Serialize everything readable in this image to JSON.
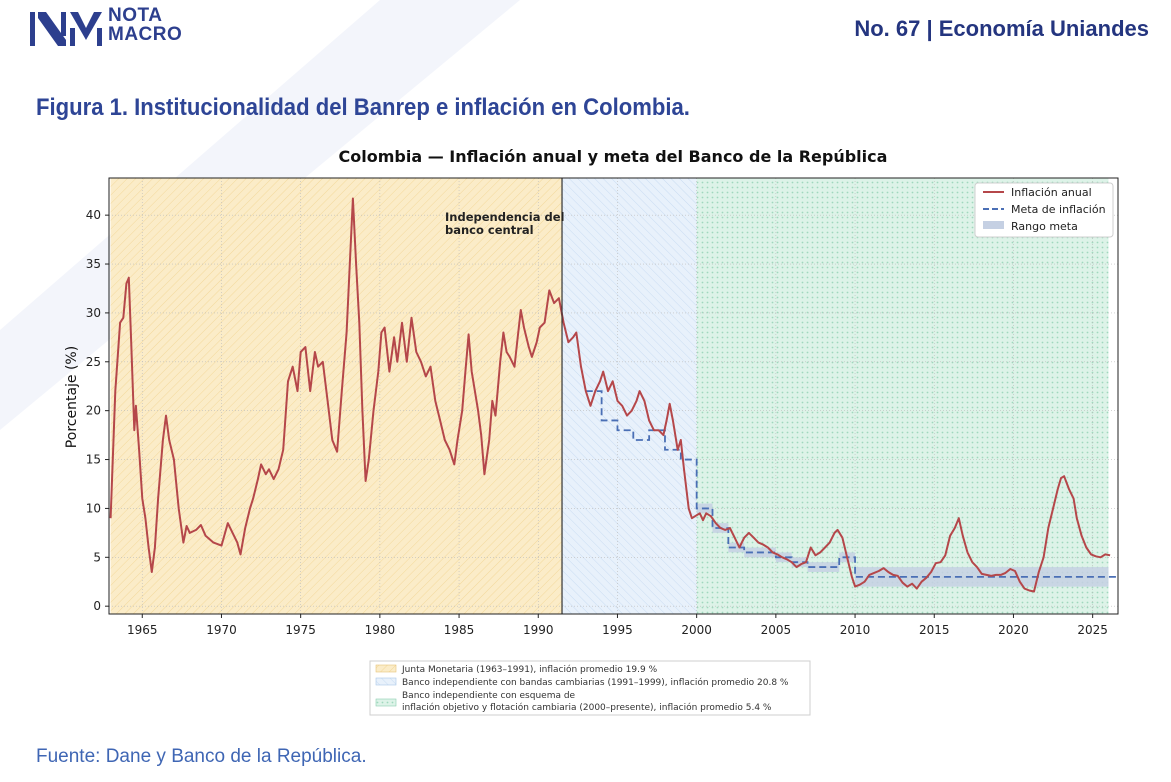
{
  "header": {
    "logo_line1": "NOTA",
    "logo_line2": "MACRO",
    "issue": "No. 67 | Economía Uniandes"
  },
  "figure_title": "Figura 1. Institucionalidad del Banrep e inflación en Colombia.",
  "source": "Fuente: Dane y Banco de la República.",
  "colors": {
    "brand": "#2d3f8e",
    "inflation_line": "#b5474a",
    "target_line": "#4a6fb5",
    "target_band": "#c5d0e3",
    "period1": "#fbecc8",
    "period2": "#e3eefa",
    "period3": "#d9f1e6"
  },
  "chart_data": {
    "type": "line",
    "title": "Colombia — Inflación anual y meta del Banco de la República",
    "xlabel": "",
    "ylabel": "Porcentaje (%)",
    "xlim": [
      1962.9,
      2026.6
    ],
    "ylim": [
      -0.8,
      43.8
    ],
    "x_ticks": [
      1965,
      1970,
      1975,
      1980,
      1985,
      1990,
      1995,
      2000,
      2005,
      2010,
      2015,
      2020,
      2025
    ],
    "y_ticks": [
      0,
      5,
      10,
      15,
      20,
      25,
      30,
      35,
      40
    ],
    "grid": true,
    "legend_position": "top-right",
    "legend": [
      "Inflación anual",
      "Meta de inflación",
      "Rango meta"
    ],
    "annotation": {
      "text_line1": "Independencia del",
      "text_line2": "banco central",
      "x": 1991.5
    },
    "periods": [
      {
        "label": "Junta Monetaria (1963–1991), inflación promedio 19.9 %",
        "start": 1963,
        "end": 1991.5
      },
      {
        "label": "Banco independiente con bandas cambiarias (1991–1999), inflación promedio 20.8 %",
        "start": 1991.5,
        "end": 2000
      },
      {
        "label_line1": "Banco independiente con esquema de",
        "label_line2": "inflación objetivo y flotación cambiaria (2000–presente), inflación promedio 5.4 %",
        "start": 2000,
        "end": 2026
      }
    ],
    "series": [
      {
        "name": "Inflación anual",
        "points": [
          [
            1963.0,
            9
          ],
          [
            1963.3,
            22
          ],
          [
            1963.6,
            29
          ],
          [
            1963.8,
            29.5
          ],
          [
            1964.0,
            33
          ],
          [
            1964.15,
            33.6
          ],
          [
            1964.3,
            27
          ],
          [
            1964.5,
            18
          ],
          [
            1964.6,
            20.5
          ],
          [
            1964.8,
            16
          ],
          [
            1965.0,
            11
          ],
          [
            1965.2,
            9
          ],
          [
            1965.4,
            6
          ],
          [
            1965.6,
            3.5
          ],
          [
            1965.8,
            6
          ],
          [
            1966.0,
            11
          ],
          [
            1966.3,
            17
          ],
          [
            1966.5,
            19.5
          ],
          [
            1966.7,
            17
          ],
          [
            1967.0,
            15
          ],
          [
            1967.3,
            10
          ],
          [
            1967.6,
            6.5
          ],
          [
            1967.8,
            8.2
          ],
          [
            1968.0,
            7.5
          ],
          [
            1968.4,
            7.8
          ],
          [
            1968.7,
            8.3
          ],
          [
            1969.0,
            7.2
          ],
          [
            1969.5,
            6.5
          ],
          [
            1970.0,
            6.2
          ],
          [
            1970.4,
            8.5
          ],
          [
            1970.7,
            7.5
          ],
          [
            1971.0,
            6.5
          ],
          [
            1971.2,
            5.3
          ],
          [
            1971.5,
            8
          ],
          [
            1971.8,
            10
          ],
          [
            1972.0,
            11
          ],
          [
            1972.3,
            13
          ],
          [
            1972.5,
            14.5
          ],
          [
            1972.8,
            13.5
          ],
          [
            1973.0,
            14
          ],
          [
            1973.3,
            13
          ],
          [
            1973.6,
            14
          ],
          [
            1973.9,
            16
          ],
          [
            1974.2,
            23
          ],
          [
            1974.5,
            24.5
          ],
          [
            1974.8,
            22
          ],
          [
            1975.0,
            26
          ],
          [
            1975.3,
            26.5
          ],
          [
            1975.6,
            22
          ],
          [
            1975.9,
            26
          ],
          [
            1976.1,
            24.5
          ],
          [
            1976.4,
            25
          ],
          [
            1976.7,
            21
          ],
          [
            1977.0,
            17
          ],
          [
            1977.3,
            15.8
          ],
          [
            1977.6,
            22
          ],
          [
            1977.9,
            28
          ],
          [
            1978.1,
            35
          ],
          [
            1978.3,
            41.7
          ],
          [
            1978.5,
            35
          ],
          [
            1978.7,
            29
          ],
          [
            1978.9,
            20
          ],
          [
            1979.1,
            12.8
          ],
          [
            1979.3,
            15
          ],
          [
            1979.6,
            20
          ],
          [
            1979.9,
            24
          ],
          [
            1980.1,
            28
          ],
          [
            1980.3,
            28.5
          ],
          [
            1980.6,
            24
          ],
          [
            1980.9,
            27.5
          ],
          [
            1981.1,
            25
          ],
          [
            1981.4,
            29
          ],
          [
            1981.7,
            25
          ],
          [
            1982.0,
            29.5
          ],
          [
            1982.3,
            26
          ],
          [
            1982.6,
            25
          ],
          [
            1982.9,
            23.5
          ],
          [
            1983.2,
            24.5
          ],
          [
            1983.5,
            21
          ],
          [
            1983.8,
            19
          ],
          [
            1984.1,
            17
          ],
          [
            1984.4,
            16
          ],
          [
            1984.7,
            14.5
          ],
          [
            1984.9,
            17
          ],
          [
            1985.2,
            20
          ],
          [
            1985.4,
            24
          ],
          [
            1985.6,
            27.8
          ],
          [
            1985.8,
            24
          ],
          [
            1986.0,
            22
          ],
          [
            1986.2,
            20
          ],
          [
            1986.4,
            17.5
          ],
          [
            1986.6,
            13.5
          ],
          [
            1986.9,
            17
          ],
          [
            1987.1,
            21
          ],
          [
            1987.3,
            19.5
          ],
          [
            1987.6,
            25
          ],
          [
            1987.8,
            28
          ],
          [
            1988.0,
            26
          ],
          [
            1988.2,
            25.5
          ],
          [
            1988.5,
            24.5
          ],
          [
            1988.7,
            27.5
          ],
          [
            1988.9,
            30.3
          ],
          [
            1989.1,
            28.5
          ],
          [
            1989.4,
            26.5
          ],
          [
            1989.6,
            25.5
          ],
          [
            1989.9,
            27
          ],
          [
            1990.1,
            28.5
          ],
          [
            1990.4,
            29
          ],
          [
            1990.7,
            32.3
          ],
          [
            1991.0,
            31
          ],
          [
            1991.3,
            31.5
          ],
          [
            1991.6,
            29
          ],
          [
            1991.9,
            27
          ],
          [
            1992.2,
            27.5
          ],
          [
            1992.4,
            28
          ],
          [
            1992.7,
            24.5
          ],
          [
            1993.0,
            22
          ],
          [
            1993.3,
            20.5
          ],
          [
            1993.6,
            22
          ],
          [
            1993.9,
            23
          ],
          [
            1994.1,
            24
          ],
          [
            1994.4,
            22
          ],
          [
            1994.7,
            23
          ],
          [
            1995.0,
            21
          ],
          [
            1995.3,
            20.5
          ],
          [
            1995.6,
            19.5
          ],
          [
            1995.9,
            20
          ],
          [
            1996.2,
            21
          ],
          [
            1996.4,
            22
          ],
          [
            1996.7,
            21
          ],
          [
            1997.0,
            19
          ],
          [
            1997.3,
            18
          ],
          [
            1997.6,
            18
          ],
          [
            1997.9,
            17.5
          ],
          [
            1998.1,
            19
          ],
          [
            1998.3,
            20.7
          ],
          [
            1998.5,
            19
          ],
          [
            1998.8,
            16
          ],
          [
            1999.0,
            17
          ],
          [
            1999.2,
            14
          ],
          [
            1999.5,
            10
          ],
          [
            1999.7,
            9
          ],
          [
            1999.9,
            9.2
          ],
          [
            2000.2,
            9.5
          ],
          [
            2000.4,
            8.8
          ],
          [
            2000.6,
            9.5
          ],
          [
            2000.9,
            9.2
          ],
          [
            2001.2,
            8.5
          ],
          [
            2001.5,
            8
          ],
          [
            2001.8,
            7.8
          ],
          [
            2002.1,
            8
          ],
          [
            2002.4,
            7
          ],
          [
            2002.7,
            6
          ],
          [
            2003.0,
            7
          ],
          [
            2003.3,
            7.5
          ],
          [
            2003.6,
            7
          ],
          [
            2003.9,
            6.5
          ],
          [
            2004.2,
            6.3
          ],
          [
            2004.5,
            6
          ],
          [
            2004.8,
            5.5
          ],
          [
            2005.1,
            5.3
          ],
          [
            2005.4,
            5
          ],
          [
            2005.7,
            4.8
          ],
          [
            2006.0,
            4.5
          ],
          [
            2006.3,
            4
          ],
          [
            2006.6,
            4.3
          ],
          [
            2006.9,
            4.5
          ],
          [
            2007.2,
            6
          ],
          [
            2007.5,
            5.2
          ],
          [
            2007.8,
            5.5
          ],
          [
            2008.1,
            6
          ],
          [
            2008.4,
            6.5
          ],
          [
            2008.7,
            7.5
          ],
          [
            2008.9,
            7.8
          ],
          [
            2009.2,
            7
          ],
          [
            2009.5,
            5
          ],
          [
            2009.8,
            3
          ],
          [
            2010.0,
            2
          ],
          [
            2010.3,
            2.2
          ],
          [
            2010.6,
            2.5
          ],
          [
            2010.9,
            3.2
          ],
          [
            2011.2,
            3.4
          ],
          [
            2011.5,
            3.6
          ],
          [
            2011.8,
            3.9
          ],
          [
            2012.1,
            3.5
          ],
          [
            2012.4,
            3.2
          ],
          [
            2012.7,
            3.1
          ],
          [
            2013.0,
            2.4
          ],
          [
            2013.3,
            2
          ],
          [
            2013.6,
            2.3
          ],
          [
            2013.9,
            1.8
          ],
          [
            2014.2,
            2.5
          ],
          [
            2014.5,
            2.9
          ],
          [
            2014.8,
            3.5
          ],
          [
            2015.1,
            4.4
          ],
          [
            2015.4,
            4.5
          ],
          [
            2015.7,
            5.2
          ],
          [
            2016.0,
            7.2
          ],
          [
            2016.3,
            8
          ],
          [
            2016.55,
            9
          ],
          [
            2016.8,
            7.2
          ],
          [
            2017.1,
            5.5
          ],
          [
            2017.4,
            4.5
          ],
          [
            2017.7,
            4
          ],
          [
            2018.0,
            3.3
          ],
          [
            2018.3,
            3.2
          ],
          [
            2018.6,
            3.1
          ],
          [
            2018.9,
            3.2
          ],
          [
            2019.2,
            3.2
          ],
          [
            2019.5,
            3.4
          ],
          [
            2019.8,
            3.8
          ],
          [
            2020.1,
            3.6
          ],
          [
            2020.4,
            2.5
          ],
          [
            2020.7,
            1.8
          ],
          [
            2021.0,
            1.6
          ],
          [
            2021.3,
            1.5
          ],
          [
            2021.6,
            3.5
          ],
          [
            2021.9,
            5
          ],
          [
            2022.2,
            8
          ],
          [
            2022.5,
            10
          ],
          [
            2022.8,
            12
          ],
          [
            2023.0,
            13.1
          ],
          [
            2023.2,
            13.3
          ],
          [
            2023.5,
            12
          ],
          [
            2023.8,
            11
          ],
          [
            2024.0,
            9
          ],
          [
            2024.3,
            7.2
          ],
          [
            2024.6,
            6
          ],
          [
            2024.9,
            5.3
          ],
          [
            2025.2,
            5.1
          ],
          [
            2025.5,
            5
          ],
          [
            2025.8,
            5.3
          ],
          [
            2026.1,
            5.2
          ]
        ]
      },
      {
        "name": "Meta de inflación",
        "steps": [
          [
            1993,
            22
          ],
          [
            1994,
            19
          ],
          [
            1995,
            18
          ],
          [
            1996,
            17
          ],
          [
            1997,
            18
          ],
          [
            1998,
            16
          ],
          [
            1999,
            15
          ],
          [
            2000,
            10
          ],
          [
            2001,
            8
          ],
          [
            2002,
            6
          ],
          [
            2003,
            5.5
          ],
          [
            2004,
            5.5
          ],
          [
            2005,
            5
          ],
          [
            2006,
            4.5
          ],
          [
            2007,
            4
          ],
          [
            2008,
            4
          ],
          [
            2009,
            5
          ],
          [
            2010,
            3
          ],
          [
            2026.6,
            3
          ]
        ]
      }
    ],
    "target_range": [
      [
        2000,
        9.5,
        10.5
      ],
      [
        2001,
        7.5,
        8.5
      ],
      [
        2002,
        5.5,
        6.5
      ],
      [
        2003,
        5,
        6
      ],
      [
        2004,
        5,
        6
      ],
      [
        2005,
        4.5,
        5.5
      ],
      [
        2006,
        4,
        5
      ],
      [
        2007,
        3.5,
        4.5
      ],
      [
        2008,
        3.5,
        4.5
      ],
      [
        2009,
        4.5,
        5.5
      ],
      [
        2010,
        2,
        4
      ],
      [
        2026,
        2,
        4
      ]
    ]
  }
}
